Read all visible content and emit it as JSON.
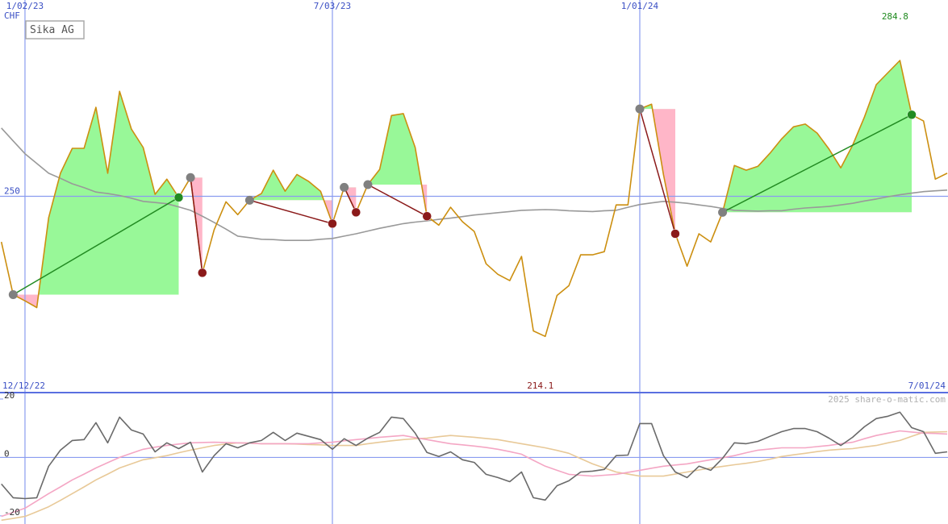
{
  "chart_data": [
    {
      "type": "line",
      "title": "Sika AG",
      "unit": "CHF",
      "x": [
        "12/19/22",
        "12/26/22",
        "1/02/23",
        "1/09/23",
        "1/16/23",
        "1/23/23",
        "1/30/23",
        "2/06/23",
        "2/13/23",
        "2/20/23",
        "2/27/23",
        "3/06/23",
        "3/13/23",
        "3/20/23",
        "3/27/23",
        "4/03/23",
        "4/10/23",
        "4/17/23",
        "4/24/23",
        "5/01/23",
        "5/08/23",
        "5/15/23",
        "5/22/23",
        "5/29/23",
        "6/05/23",
        "6/12/23",
        "6/19/23",
        "6/26/23",
        "7/03/23",
        "7/10/23",
        "7/17/23",
        "7/24/23",
        "7/31/23",
        "8/07/23",
        "8/14/23",
        "8/21/23",
        "8/28/23",
        "9/04/23",
        "9/11/23",
        "9/18/23",
        "9/25/23",
        "10/02/23",
        "10/09/23",
        "10/16/23",
        "10/23/23",
        "10/30/23",
        "11/06/23",
        "11/13/23",
        "11/20/23",
        "11/27/23",
        "12/04/23",
        "12/11/23",
        "12/18/23",
        "12/25/23",
        "1/01/24",
        "1/08/24",
        "1/15/24",
        "1/22/24",
        "1/29/24",
        "2/05/24",
        "2/12/24",
        "2/19/24",
        "2/26/24",
        "3/04/24",
        "3/11/24",
        "3/18/24",
        "3/25/24",
        "4/01/24",
        "4/08/24",
        "4/15/24",
        "4/22/24",
        "4/29/24",
        "5/06/24",
        "5/13/24",
        "5/20/24",
        "5/27/24",
        "6/03/24",
        "6/10/24",
        "6/17/24",
        "6/24/24",
        "7/01/24"
      ],
      "xlim": [
        "12/12/22",
        "7/01/24"
      ],
      "xticks": [
        "1/02/23",
        "7/03/23",
        "1/01/24"
      ],
      "ylim": [
        199.7,
        300.3
      ],
      "yticks": [
        250
      ],
      "series": [
        {
          "color": "#999999",
          "values": [
            267.5,
            264.2,
            260.9,
            258.4,
            255.9,
            254.6,
            253.2,
            252.2,
            251.1,
            250.7,
            250.2,
            249.5,
            248.7,
            248.4,
            248.1,
            247.3,
            246.4,
            244.9,
            243.3,
            241.6,
            239.8,
            239.4,
            239.0,
            238.9,
            238.7,
            238.7,
            238.7,
            239.0,
            239.2,
            239.8,
            240.4,
            241.1,
            241.8,
            242.4,
            243.0,
            243.4,
            243.7,
            244.1,
            244.4,
            244.8,
            245.2,
            245.5,
            245.8,
            246.1,
            246.4,
            246.5,
            246.6,
            246.5,
            246.3,
            246.2,
            246.1,
            246.3,
            246.4,
            247.2,
            247.9,
            248.3,
            248.7,
            248.5,
            248.2,
            247.8,
            247.4,
            246.9,
            246.4,
            246.3,
            246.2,
            246.3,
            246.3,
            246.7,
            247.0,
            247.2,
            247.4,
            247.8,
            248.2,
            248.8,
            249.3,
            249.9,
            250.4,
            250.8,
            251.2,
            251.4,
            251.6
          ]
        },
        {
          "color": "#cc8f10",
          "values": [
            238.3,
            224.8,
            223.2,
            221.5,
            244.5,
            255.9,
            262.3,
            262.3,
            272.8,
            255.9,
            276.9,
            267.2,
            262.5,
            250.5,
            254.4,
            249.7,
            254.8,
            230.4,
            241.4,
            248.6,
            245.3,
            249.0,
            250.7,
            256.7,
            251.3,
            255.6,
            253.8,
            251.3,
            243.0,
            252.3,
            245.9,
            253.0,
            256.9,
            270.7,
            271.2,
            262.5,
            244.9,
            242.6,
            247.2,
            243.5,
            241.0,
            232.7,
            230.0,
            228.4,
            234.6,
            215.5,
            214.1,
            224.6,
            227.1,
            235.0,
            235.0,
            235.8,
            247.8,
            247.8,
            272.4,
            273.6,
            255.6,
            240.4,
            232.1,
            240.4,
            238.3,
            245.9,
            257.9,
            256.7,
            257.7,
            261.0,
            264.7,
            267.8,
            268.5,
            266.2,
            262.1,
            257.3,
            263.1,
            270.3,
            278.6,
            281.7,
            284.8,
            270.9,
            269.3,
            254.4,
            255.9
          ]
        }
      ],
      "gain_fill": "#98f898",
      "loss_fill": "#ffb6c8",
      "entry_color": "#808080",
      "trades": [
        {
          "entry": "12/26/22",
          "exit": "4/03/23",
          "color": "#228b22"
        },
        {
          "entry": "4/10/23",
          "exit": "4/17/23",
          "color": "#8b1a1a"
        },
        {
          "entry": "5/15/23",
          "exit": "7/03/23",
          "color": "#8b1a1a"
        },
        {
          "entry": "7/10/23",
          "exit": "7/17/23",
          "color": "#8b1a1a"
        },
        {
          "entry": "7/24/23",
          "exit": "8/28/23",
          "color": "#8b1a1a"
        },
        {
          "entry": "1/01/24",
          "exit": "1/22/24",
          "color": "#8b1a1a"
        },
        {
          "entry": "2/19/24",
          "exit": "6/10/24",
          "color": "#228b22"
        }
      ]
    },
    {
      "type": "line",
      "credit": "2025 share-o-matic.com",
      "ylim": [
        -22.8,
        22.2
      ],
      "yticks": [
        -20,
        0,
        20
      ],
      "series": [
        {
          "color": "#e8c998",
          "values": [
            -21.5,
            -20.9,
            -20.2,
            -18.6,
            -16.9,
            -14.7,
            -12.4,
            -10.1,
            -7.7,
            -5.7,
            -3.6,
            -2.2,
            -0.8,
            -0.1,
            0.6,
            1.6,
            2.5,
            3.3,
            4.1,
            4.6,
            5.0,
            4.9,
            4.7,
            4.7,
            4.7,
            4.6,
            4.4,
            4.3,
            4.1,
            4.1,
            4.1,
            4.7,
            5.2,
            5.7,
            6.1,
            6.4,
            6.6,
            7.1,
            7.5,
            7.2,
            6.9,
            6.5,
            6.1,
            5.4,
            4.7,
            4.0,
            3.3,
            2.4,
            1.4,
            -0.4,
            -2.2,
            -3.6,
            -5.0,
            -5.7,
            -6.4,
            -6.4,
            -6.4,
            -5.7,
            -5.0,
            -4.3,
            -3.6,
            -3.1,
            -2.5,
            -2.0,
            -1.4,
            -0.6,
            0.3,
            0.9,
            1.4,
            2.0,
            2.5,
            2.8,
            3.0,
            3.6,
            4.1,
            5.0,
            5.8,
            7.2,
            8.6,
            8.7,
            8.8
          ]
        },
        {
          "color": "#f4a6c4",
          "values": [
            -20.2,
            -18.8,
            -17.4,
            -14.9,
            -12.4,
            -10.1,
            -7.7,
            -5.7,
            -3.6,
            -1.8,
            0.0,
            1.4,
            2.8,
            3.5,
            4.1,
            4.6,
            5.0,
            5.1,
            5.2,
            5.1,
            5.0,
            4.9,
            4.7,
            4.7,
            4.7,
            4.7,
            4.7,
            5.0,
            5.2,
            5.7,
            6.1,
            6.5,
            6.9,
            7.2,
            7.5,
            6.8,
            6.1,
            5.4,
            4.7,
            4.3,
            3.9,
            3.4,
            2.8,
            2.0,
            1.1,
            -1.0,
            -3.0,
            -4.4,
            -5.8,
            -6.1,
            -6.4,
            -6.1,
            -5.8,
            -5.1,
            -4.4,
            -3.7,
            -3.0,
            -2.6,
            -2.2,
            -1.5,
            -0.8,
            -0.1,
            0.6,
            1.6,
            2.5,
            2.9,
            3.3,
            3.3,
            3.3,
            3.7,
            4.1,
            4.7,
            5.2,
            6.4,
            7.5,
            8.3,
            9.1,
            8.7,
            8.3,
            8.2,
            8.0
          ]
        },
        {
          "color": "#6a6a6a",
          "values": [
            -9.1,
            -13.8,
            -14.1,
            -13.8,
            -3.0,
            2.5,
            5.8,
            6.1,
            11.9,
            5.0,
            13.8,
            9.4,
            8.0,
            1.9,
            5.0,
            3.0,
            5.2,
            -5.0,
            0.6,
            4.7,
            3.3,
            5.0,
            5.8,
            8.6,
            5.8,
            8.3,
            7.2,
            6.1,
            2.8,
            6.4,
            4.1,
            6.6,
            8.6,
            13.8,
            13.3,
            8.3,
            1.7,
            0.3,
            1.9,
            -0.8,
            -1.7,
            -5.8,
            -6.9,
            -8.3,
            -5.0,
            -13.8,
            -14.6,
            -9.7,
            -8.0,
            -5.0,
            -4.7,
            -4.1,
            0.6,
            0.8,
            11.6,
            11.6,
            0.6,
            -5.0,
            -6.9,
            -3.0,
            -4.4,
            -0.3,
            5.0,
            4.7,
            5.5,
            7.2,
            8.8,
            9.9,
            9.9,
            8.8,
            6.6,
            4.1,
            6.9,
            10.5,
            13.3,
            14.1,
            15.5,
            10.2,
            8.8,
            1.4,
            1.9
          ]
        }
      ]
    }
  ]
}
